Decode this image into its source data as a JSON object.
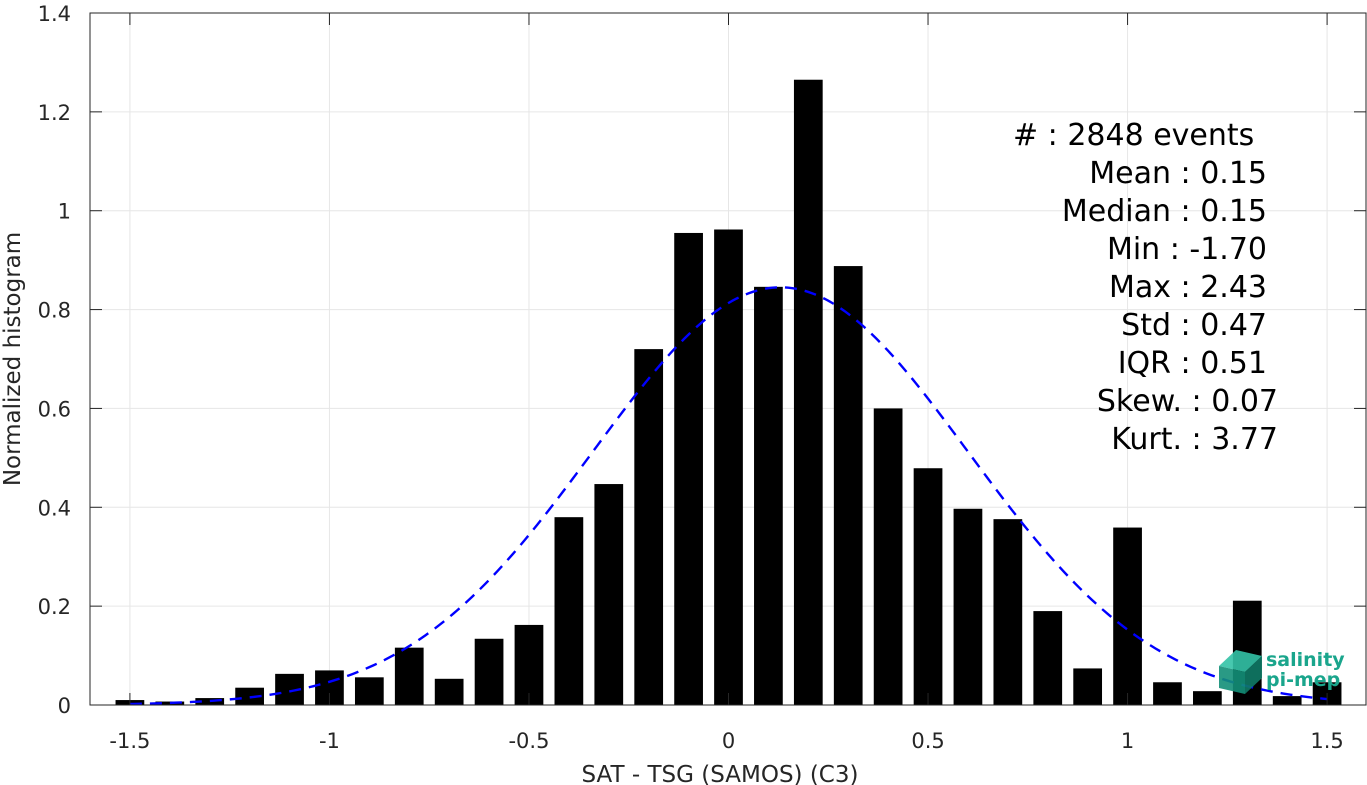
{
  "chart_data": {
    "type": "bar",
    "xlabel": "SAT - TSG (SAMOS) (C3)",
    "ylabel": "Normalized histogram",
    "xlim": [
      -1.6,
      1.6
    ],
    "ylim": [
      0,
      1.4
    ],
    "xticks": [
      -1.5,
      -1,
      -0.5,
      0,
      0.5,
      1,
      1.5
    ],
    "xtick_labels": [
      "-1.5",
      "-1",
      "-0.5",
      "0",
      "0.5",
      "1",
      "1.5"
    ],
    "yticks": [
      0,
      0.2,
      0.4,
      0.6,
      0.8,
      1,
      1.2,
      1.4
    ],
    "ytick_labels": [
      "0",
      "0.2",
      "0.4",
      "0.6",
      "0.8",
      "1",
      "1.2",
      "1.4"
    ],
    "grid": true,
    "bin_width": 0.1,
    "bar_color": "#000000",
    "bars": {
      "x": [
        -1.5,
        -1.4,
        -1.3,
        -1.2,
        -1.1,
        -1.0,
        -0.9,
        -0.8,
        -0.7,
        -0.6,
        -0.5,
        -0.4,
        -0.3,
        -0.2,
        -0.1,
        0.0,
        0.1,
        0.2,
        0.3,
        0.4,
        0.5,
        0.6,
        0.7,
        0.8,
        0.9,
        1.0,
        1.1,
        1.2,
        1.3,
        1.4,
        1.5
      ],
      "values": [
        0.01,
        0.007,
        0.014,
        0.035,
        0.063,
        0.07,
        0.056,
        0.116,
        0.053,
        0.134,
        0.162,
        0.38,
        0.447,
        0.72,
        0.955,
        0.962,
        0.846,
        1.265,
        0.888,
        0.6,
        0.479,
        0.397,
        0.376,
        0.19,
        0.074,
        0.359,
        0.046,
        0.028,
        0.211,
        0.018,
        0.046
      ]
    },
    "fit": {
      "type": "normal",
      "mean": 0.15,
      "std": 0.47,
      "color": "#0000ff",
      "style": "dashed"
    },
    "stats": [
      {
        "label": "#  : 2848 events"
      },
      {
        "label": "Mean : 0.15"
      },
      {
        "label": "Median : 0.15"
      },
      {
        "label": "Min : -1.70"
      },
      {
        "label": "Max : 2.43"
      },
      {
        "label": "Std : 0.47"
      },
      {
        "label": "IQR : 0.51"
      },
      {
        "label": "Skew. : 0.07"
      },
      {
        "label": "Kurt. : 3.77"
      }
    ]
  },
  "logo": {
    "line1": "salinity",
    "line2": "pi-mep",
    "color": "#1aa58c"
  }
}
